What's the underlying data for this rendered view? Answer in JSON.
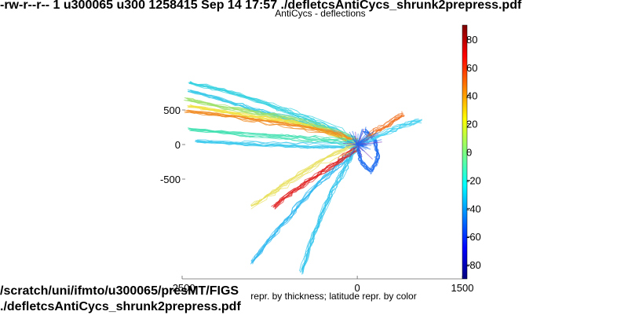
{
  "header": {
    "file_listing": "-rw-r--r-- 1 u300065 u300 1258415 Sep 14 17:57 ./defletcsAntiCycs_shrunk2prepress.pdf"
  },
  "footer": {
    "path_line": "/scratch/uni/ifmto/u300065/presMT/FIGS",
    "file_line": "./defletcsAntiCycs_shrunk2prepress.pdf"
  },
  "chart_data": {
    "type": "scatter",
    "title": "AntiCycs - deflections",
    "xlabel": "repr. by thickness; latitude repr. by color",
    "ylabel": "",
    "xlim": [
      -2500,
      1500
    ],
    "ylim": [
      -1900,
      900
    ],
    "x_ticks": [
      "-2500",
      "0",
      "1500"
    ],
    "y_ticks": [
      "500",
      "0",
      "-500"
    ],
    "grid": false,
    "colorbar": {
      "range": [
        -90,
        90
      ],
      "ticks": [
        "80",
        "60",
        "40",
        "20",
        "0",
        "-20",
        "-40",
        "-60",
        "-80"
      ],
      "colormap": "jet"
    },
    "series": [
      {
        "color": "#35c8e8",
        "values": [
          [
            -2400,
            780
          ],
          [
            -1900,
            650
          ],
          [
            -1500,
            520
          ],
          [
            -1100,
            420
          ],
          [
            -700,
            330
          ],
          [
            -350,
            210
          ],
          [
            0,
            50
          ]
        ]
      },
      {
        "color": "#30d0e0",
        "values": [
          [
            -2400,
            900
          ],
          [
            -1800,
            760
          ],
          [
            -1200,
            560
          ],
          [
            -800,
            420
          ],
          [
            -400,
            260
          ],
          [
            0,
            60
          ]
        ]
      },
      {
        "color": "#9ee06a",
        "values": [
          [
            -2450,
            660
          ],
          [
            -2000,
            560
          ],
          [
            -1500,
            470
          ],
          [
            -1000,
            380
          ],
          [
            -500,
            240
          ],
          [
            0,
            40
          ]
        ]
      },
      {
        "color": "#f0e040",
        "values": [
          [
            -2400,
            560
          ],
          [
            -1900,
            470
          ],
          [
            -1400,
            390
          ],
          [
            -900,
            320
          ],
          [
            -500,
            210
          ],
          [
            0,
            30
          ]
        ]
      },
      {
        "color": "#f08a20",
        "values": [
          [
            -2450,
            480
          ],
          [
            -1900,
            420
          ],
          [
            -1400,
            340
          ],
          [
            -800,
            250
          ],
          [
            -300,
            150
          ],
          [
            0,
            20
          ]
        ]
      },
      {
        "color": "#40e0b0",
        "values": [
          [
            -2400,
            220
          ],
          [
            -1800,
            160
          ],
          [
            -1200,
            120
          ],
          [
            -700,
            80
          ],
          [
            -300,
            50
          ],
          [
            0,
            10
          ]
        ]
      },
      {
        "color": "#38c8ec",
        "values": [
          [
            -2300,
            50
          ],
          [
            -1700,
            20
          ],
          [
            -1100,
            0
          ],
          [
            -600,
            -20
          ],
          [
            -200,
            -10
          ],
          [
            0,
            0
          ]
        ]
      },
      {
        "color": "#2fb8f0",
        "values": [
          [
            -1500,
            -1700
          ],
          [
            -1200,
            -1300
          ],
          [
            -900,
            -950
          ],
          [
            -600,
            -600
          ],
          [
            -300,
            -320
          ],
          [
            0,
            -40
          ]
        ]
      },
      {
        "color": "#30c4ec",
        "values": [
          [
            -800,
            -1850
          ],
          [
            -650,
            -1400
          ],
          [
            -500,
            -1000
          ],
          [
            -350,
            -650
          ],
          [
            -150,
            -300
          ],
          [
            0,
            -20
          ]
        ]
      },
      {
        "color": "#e02020",
        "values": [
          [
            -1200,
            -900
          ],
          [
            -900,
            -650
          ],
          [
            -600,
            -450
          ],
          [
            -300,
            -250
          ],
          [
            0,
            -30
          ]
        ]
      },
      {
        "color": "#1e6cf0",
        "values": [
          [
            100,
            200
          ],
          [
            250,
            50
          ],
          [
            300,
            -200
          ],
          [
            200,
            -400
          ],
          [
            50,
            -250
          ],
          [
            0,
            0
          ]
        ]
      },
      {
        "color": "#f07020",
        "values": [
          [
            0,
            0
          ],
          [
            250,
            200
          ],
          [
            450,
            300
          ],
          [
            650,
            450
          ]
        ]
      },
      {
        "color": "#40d0f0",
        "values": [
          [
            0,
            0
          ],
          [
            350,
            150
          ],
          [
            650,
            280
          ],
          [
            900,
            350
          ]
        ]
      },
      {
        "color": "#e8e060",
        "values": [
          [
            -1500,
            -900
          ],
          [
            -1200,
            -700
          ],
          [
            -900,
            -500
          ],
          [
            -500,
            -250
          ],
          [
            0,
            0
          ]
        ]
      }
    ]
  }
}
